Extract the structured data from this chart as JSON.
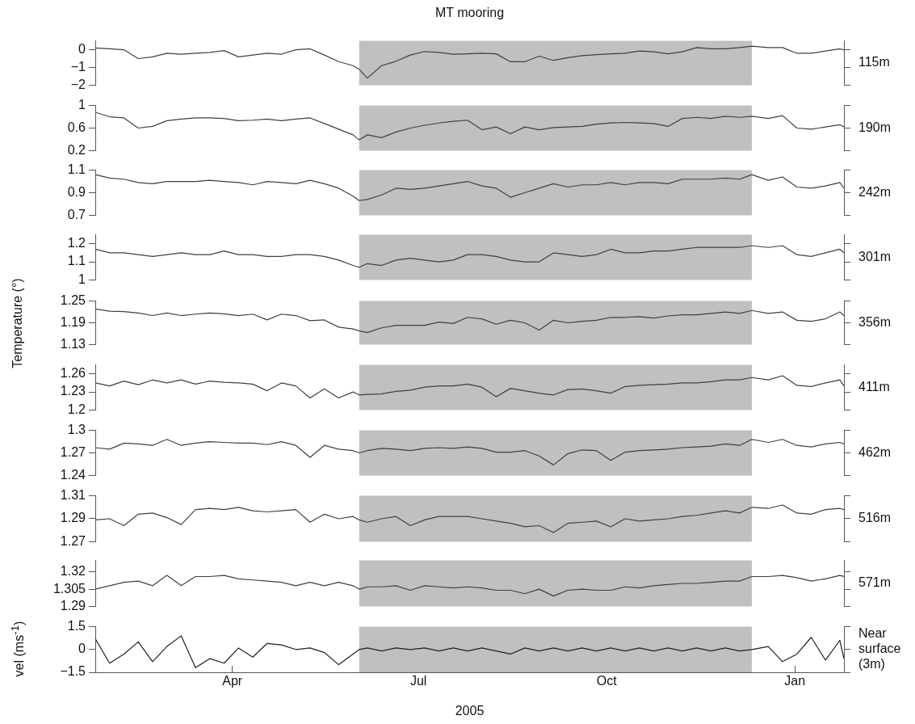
{
  "chart_data": [
    {
      "type": "line",
      "title": "MT mooring",
      "tick_labels": "y",
      "xlim": [
        "2005-01-24",
        "2006-01-25"
      ],
      "ylim": [
        -2,
        0.5
      ],
      "yticks": [
        -2,
        -1,
        0
      ],
      "bands": [
        {
          "axis": "x",
          "from": "2005-06-02",
          "to": "2005-12-11",
          "color": "#c0c0c0"
        }
      ],
      "x": [
        "2005-01-24",
        "2005-01-31",
        "2005-02-07",
        "2005-02-14",
        "2005-02-21",
        "2005-02-28",
        "2005-03-07",
        "2005-03-14",
        "2005-03-21",
        "2005-03-28",
        "2005-04-04",
        "2005-04-11",
        "2005-04-18",
        "2005-04-25",
        "2005-05-02",
        "2005-05-09",
        "2005-05-16",
        "2005-05-23",
        "2005-05-30",
        "2005-06-02",
        "2005-06-06",
        "2005-06-13",
        "2005-06-20",
        "2005-06-27",
        "2005-07-04",
        "2005-07-11",
        "2005-07-18",
        "2005-07-25",
        "2005-08-01",
        "2005-08-08",
        "2005-08-15",
        "2005-08-22",
        "2005-08-29",
        "2005-09-05",
        "2005-09-12",
        "2005-09-19",
        "2005-09-26",
        "2005-10-03",
        "2005-10-10",
        "2005-10-17",
        "2005-10-24",
        "2005-10-31",
        "2005-11-07",
        "2005-11-14",
        "2005-11-21",
        "2005-11-28",
        "2005-12-05",
        "2005-12-11",
        "2005-12-19",
        "2005-12-26",
        "2006-01-02",
        "2006-01-09",
        "2006-01-16",
        "2006-01-23",
        "2006-01-25"
      ],
      "series": [
        {
          "name": "115m",
          "color": "#404040",
          "values": [
            0.1,
            0.05,
            0.0,
            -0.5,
            -0.4,
            -0.2,
            -0.25,
            -0.2,
            -0.15,
            -0.05,
            -0.4,
            -0.3,
            -0.2,
            -0.25,
            0.0,
            0.05,
            -0.3,
            -0.67,
            -0.9,
            -1.1,
            -1.6,
            -0.9,
            -0.65,
            -0.3,
            -0.1,
            -0.15,
            -0.25,
            -0.23,
            -0.2,
            -0.23,
            -0.68,
            -0.68,
            -0.36,
            -0.6,
            -0.45,
            -0.33,
            -0.28,
            -0.23,
            -0.2,
            -0.07,
            -0.12,
            -0.23,
            -0.12,
            0.12,
            0.05,
            0.05,
            0.12,
            0.2,
            0.12,
            0.12,
            -0.2,
            -0.2,
            -0.07,
            0.05,
            0.0
          ]
        }
      ]
    },
    {
      "type": "line",
      "tick_labels": "y",
      "xlim": [
        "2005-01-24",
        "2006-01-25"
      ],
      "ylim": [
        0.2,
        1
      ],
      "yticks": [
        0.2,
        0.6,
        1
      ],
      "bands": [
        {
          "axis": "x",
          "from": "2005-06-02",
          "to": "2005-12-11",
          "color": "#c0c0c0"
        }
      ],
      "x": [
        "2005-01-24",
        "2005-01-31",
        "2005-02-07",
        "2005-02-14",
        "2005-02-21",
        "2005-02-28",
        "2005-03-07",
        "2005-03-14",
        "2005-03-21",
        "2005-03-28",
        "2005-04-04",
        "2005-04-11",
        "2005-04-18",
        "2005-04-25",
        "2005-05-02",
        "2005-05-09",
        "2005-05-16",
        "2005-05-23",
        "2005-05-30",
        "2005-06-02",
        "2005-06-06",
        "2005-06-13",
        "2005-06-20",
        "2005-06-27",
        "2005-07-04",
        "2005-07-11",
        "2005-07-18",
        "2005-07-25",
        "2005-08-01",
        "2005-08-08",
        "2005-08-15",
        "2005-08-22",
        "2005-08-29",
        "2005-09-05",
        "2005-09-12",
        "2005-09-19",
        "2005-09-26",
        "2005-10-03",
        "2005-10-10",
        "2005-10-17",
        "2005-10-24",
        "2005-10-31",
        "2005-11-07",
        "2005-11-14",
        "2005-11-21",
        "2005-11-28",
        "2005-12-05",
        "2005-12-11",
        "2005-12-19",
        "2005-12-26",
        "2006-01-02",
        "2006-01-09",
        "2006-01-16",
        "2006-01-23",
        "2006-01-25"
      ],
      "series": [
        {
          "name": "190m",
          "color": "#404040",
          "values": [
            0.88,
            0.8,
            0.78,
            0.6,
            0.63,
            0.73,
            0.76,
            0.78,
            0.78,
            0.77,
            0.73,
            0.74,
            0.76,
            0.73,
            0.76,
            0.78,
            0.68,
            0.58,
            0.48,
            0.39,
            0.48,
            0.43,
            0.53,
            0.6,
            0.65,
            0.69,
            0.72,
            0.74,
            0.57,
            0.62,
            0.5,
            0.62,
            0.57,
            0.61,
            0.62,
            0.63,
            0.67,
            0.69,
            0.7,
            0.69,
            0.68,
            0.63,
            0.77,
            0.79,
            0.77,
            0.81,
            0.79,
            0.81,
            0.77,
            0.82,
            0.6,
            0.58,
            0.62,
            0.66,
            0.62
          ]
        }
      ]
    },
    {
      "type": "line",
      "tick_labels": "y",
      "xlim": [
        "2005-01-24",
        "2006-01-25"
      ],
      "ylim": [
        0.7,
        1.1
      ],
      "yticks": [
        0.7,
        0.9,
        1.1
      ],
      "bands": [
        {
          "axis": "x",
          "from": "2005-06-02",
          "to": "2005-12-11",
          "color": "#c0c0c0"
        }
      ],
      "x": [
        "2005-01-24",
        "2005-01-31",
        "2005-02-07",
        "2005-02-14",
        "2005-02-21",
        "2005-02-28",
        "2005-03-07",
        "2005-03-14",
        "2005-03-21",
        "2005-03-28",
        "2005-04-04",
        "2005-04-11",
        "2005-04-18",
        "2005-04-25",
        "2005-05-02",
        "2005-05-09",
        "2005-05-16",
        "2005-05-23",
        "2005-05-30",
        "2005-06-02",
        "2005-06-06",
        "2005-06-13",
        "2005-06-20",
        "2005-06-27",
        "2005-07-04",
        "2005-07-11",
        "2005-07-18",
        "2005-07-25",
        "2005-08-01",
        "2005-08-08",
        "2005-08-15",
        "2005-08-22",
        "2005-08-29",
        "2005-09-05",
        "2005-09-12",
        "2005-09-19",
        "2005-09-26",
        "2005-10-03",
        "2005-10-10",
        "2005-10-17",
        "2005-10-24",
        "2005-10-31",
        "2005-11-07",
        "2005-11-14",
        "2005-11-21",
        "2005-11-28",
        "2005-12-05",
        "2005-12-11",
        "2005-12-19",
        "2005-12-26",
        "2006-01-02",
        "2006-01-09",
        "2006-01-16",
        "2006-01-23",
        "2006-01-25"
      ],
      "series": [
        {
          "name": "242m",
          "color": "#404040",
          "values": [
            1.06,
            1.03,
            1.02,
            0.99,
            0.98,
            1.0,
            1.0,
            1.0,
            1.01,
            1.0,
            0.99,
            0.97,
            1.0,
            0.99,
            0.98,
            1.01,
            0.98,
            0.94,
            0.87,
            0.83,
            0.84,
            0.88,
            0.94,
            0.93,
            0.94,
            0.96,
            0.98,
            1.0,
            0.96,
            0.94,
            0.86,
            0.9,
            0.94,
            0.98,
            0.95,
            0.97,
            0.97,
            0.99,
            0.97,
            0.99,
            0.99,
            0.98,
            1.02,
            1.02,
            1.02,
            1.03,
            1.02,
            1.06,
            1.01,
            1.04,
            0.95,
            0.94,
            0.96,
            0.99,
            0.94
          ]
        }
      ]
    },
    {
      "type": "line",
      "tick_labels": "y",
      "xlim": [
        "2005-01-24",
        "2006-01-25"
      ],
      "ylim": [
        1,
        1.25
      ],
      "yticks": [
        1,
        1.1,
        1.2
      ],
      "bands": [
        {
          "axis": "x",
          "from": "2005-06-02",
          "to": "2005-12-11",
          "color": "#c0c0c0"
        }
      ],
      "x": [
        "2005-01-24",
        "2005-01-31",
        "2005-02-07",
        "2005-02-14",
        "2005-02-21",
        "2005-02-28",
        "2005-03-07",
        "2005-03-14",
        "2005-03-21",
        "2005-03-28",
        "2005-04-04",
        "2005-04-11",
        "2005-04-18",
        "2005-04-25",
        "2005-05-02",
        "2005-05-09",
        "2005-05-16",
        "2005-05-23",
        "2005-05-30",
        "2005-06-02",
        "2005-06-06",
        "2005-06-13",
        "2005-06-20",
        "2005-06-27",
        "2005-07-04",
        "2005-07-11",
        "2005-07-18",
        "2005-07-25",
        "2005-08-01",
        "2005-08-08",
        "2005-08-15",
        "2005-08-22",
        "2005-08-29",
        "2005-09-05",
        "2005-09-12",
        "2005-09-19",
        "2005-09-26",
        "2005-10-03",
        "2005-10-10",
        "2005-10-17",
        "2005-10-24",
        "2005-10-31",
        "2005-11-07",
        "2005-11-14",
        "2005-11-21",
        "2005-11-28",
        "2005-12-05",
        "2005-12-11",
        "2005-12-19",
        "2005-12-26",
        "2006-01-02",
        "2006-01-09",
        "2006-01-16",
        "2006-01-23",
        "2006-01-25"
      ],
      "series": [
        {
          "name": "301m",
          "color": "#404040",
          "values": [
            1.17,
            1.15,
            1.15,
            1.14,
            1.13,
            1.14,
            1.15,
            1.14,
            1.14,
            1.16,
            1.14,
            1.14,
            1.13,
            1.13,
            1.14,
            1.14,
            1.13,
            1.11,
            1.08,
            1.07,
            1.09,
            1.08,
            1.11,
            1.12,
            1.11,
            1.1,
            1.11,
            1.14,
            1.14,
            1.13,
            1.11,
            1.1,
            1.1,
            1.15,
            1.14,
            1.13,
            1.14,
            1.17,
            1.15,
            1.15,
            1.16,
            1.16,
            1.17,
            1.18,
            1.18,
            1.18,
            1.18,
            1.19,
            1.18,
            1.19,
            1.14,
            1.13,
            1.15,
            1.17,
            1.15
          ]
        }
      ]
    },
    {
      "type": "line",
      "tick_labels": "y",
      "ylabel": "Temperature (°)",
      "xlim": [
        "2005-01-24",
        "2006-01-25"
      ],
      "ylim": [
        1.13,
        1.25
      ],
      "yticks": [
        1.13,
        1.19,
        1.25
      ],
      "bands": [
        {
          "axis": "x",
          "from": "2005-06-02",
          "to": "2005-12-11",
          "color": "#c0c0c0"
        }
      ],
      "x": [
        "2005-01-24",
        "2005-01-31",
        "2005-02-07",
        "2005-02-14",
        "2005-02-21",
        "2005-02-28",
        "2005-03-07",
        "2005-03-14",
        "2005-03-21",
        "2005-03-28",
        "2005-04-04",
        "2005-04-11",
        "2005-04-18",
        "2005-04-25",
        "2005-05-02",
        "2005-05-09",
        "2005-05-16",
        "2005-05-23",
        "2005-05-30",
        "2005-06-02",
        "2005-06-06",
        "2005-06-13",
        "2005-06-20",
        "2005-06-27",
        "2005-07-04",
        "2005-07-11",
        "2005-07-18",
        "2005-07-25",
        "2005-08-01",
        "2005-08-08",
        "2005-08-15",
        "2005-08-22",
        "2005-08-29",
        "2005-09-05",
        "2005-09-12",
        "2005-09-19",
        "2005-09-26",
        "2005-10-03",
        "2005-10-10",
        "2005-10-17",
        "2005-10-24",
        "2005-10-31",
        "2005-11-07",
        "2005-11-14",
        "2005-11-21",
        "2005-11-28",
        "2005-12-05",
        "2005-12-11",
        "2005-12-19",
        "2005-12-26",
        "2006-01-02",
        "2006-01-09",
        "2006-01-16",
        "2006-01-23",
        "2006-01-25"
      ],
      "series": [
        {
          "name": "356m",
          "color": "#404040",
          "values": [
            1.228,
            1.222,
            1.221,
            1.217,
            1.21,
            1.217,
            1.21,
            1.214,
            1.217,
            1.215,
            1.21,
            1.214,
            1.198,
            1.214,
            1.21,
            1.196,
            1.198,
            1.178,
            1.173,
            1.168,
            1.163,
            1.176,
            1.183,
            1.183,
            1.183,
            1.192,
            1.188,
            1.205,
            1.201,
            1.186,
            1.197,
            1.19,
            1.17,
            1.197,
            1.19,
            1.194,
            1.197,
            1.205,
            1.205,
            1.207,
            1.203,
            1.209,
            1.212,
            1.212,
            1.216,
            1.22,
            1.216,
            1.224,
            1.216,
            1.22,
            1.197,
            1.194,
            1.201,
            1.22,
            1.21
          ]
        }
      ]
    },
    {
      "type": "line",
      "tick_labels": "y",
      "xlim": [
        "2005-01-24",
        "2006-01-25"
      ],
      "ylim": [
        1.2,
        1.275
      ],
      "yticks": [
        1.2,
        1.23,
        1.26
      ],
      "bands": [
        {
          "axis": "x",
          "from": "2005-06-02",
          "to": "2005-12-11",
          "color": "#c0c0c0"
        }
      ],
      "x": [
        "2005-01-24",
        "2005-01-31",
        "2005-02-07",
        "2005-02-14",
        "2005-02-21",
        "2005-02-28",
        "2005-03-07",
        "2005-03-14",
        "2005-03-21",
        "2005-03-28",
        "2005-04-04",
        "2005-04-11",
        "2005-04-18",
        "2005-04-25",
        "2005-05-02",
        "2005-05-09",
        "2005-05-16",
        "2005-05-23",
        "2005-05-30",
        "2005-06-02",
        "2005-06-06",
        "2005-06-13",
        "2005-06-20",
        "2005-06-27",
        "2005-07-04",
        "2005-07-11",
        "2005-07-18",
        "2005-07-25",
        "2005-08-01",
        "2005-08-08",
        "2005-08-15",
        "2005-08-22",
        "2005-08-29",
        "2005-09-05",
        "2005-09-12",
        "2005-09-19",
        "2005-09-26",
        "2005-10-03",
        "2005-10-10",
        "2005-10-17",
        "2005-10-24",
        "2005-10-31",
        "2005-11-07",
        "2005-11-14",
        "2005-11-21",
        "2005-11-28",
        "2005-12-05",
        "2005-12-11",
        "2005-12-19",
        "2005-12-26",
        "2006-01-02",
        "2006-01-09",
        "2006-01-16",
        "2006-01-23",
        "2006-01-25"
      ],
      "series": [
        {
          "name": "411m",
          "color": "#404040",
          "values": [
            1.245,
            1.24,
            1.248,
            1.242,
            1.25,
            1.245,
            1.25,
            1.243,
            1.248,
            1.246,
            1.245,
            1.243,
            1.232,
            1.245,
            1.24,
            1.22,
            1.235,
            1.22,
            1.23,
            1.225,
            1.226,
            1.227,
            1.231,
            1.233,
            1.238,
            1.24,
            1.24,
            1.243,
            1.238,
            1.222,
            1.236,
            1.232,
            1.228,
            1.225,
            1.234,
            1.235,
            1.232,
            1.228,
            1.239,
            1.241,
            1.242,
            1.243,
            1.245,
            1.245,
            1.247,
            1.25,
            1.25,
            1.254,
            1.25,
            1.257,
            1.241,
            1.239,
            1.245,
            1.25,
            1.24
          ]
        }
      ]
    },
    {
      "type": "line",
      "tick_labels": "y",
      "xlim": [
        "2005-01-24",
        "2006-01-25"
      ],
      "ylim": [
        1.24,
        1.3
      ],
      "yticks": [
        1.24,
        1.27,
        1.3
      ],
      "bands": [
        {
          "axis": "x",
          "from": "2005-06-02",
          "to": "2005-12-11",
          "color": "#c0c0c0"
        }
      ],
      "x": [
        "2005-01-24",
        "2005-01-31",
        "2005-02-07",
        "2005-02-14",
        "2005-02-21",
        "2005-02-28",
        "2005-03-07",
        "2005-03-14",
        "2005-03-21",
        "2005-03-28",
        "2005-04-04",
        "2005-04-11",
        "2005-04-18",
        "2005-04-25",
        "2005-05-02",
        "2005-05-09",
        "2005-05-16",
        "2005-05-23",
        "2005-05-30",
        "2005-06-02",
        "2005-06-06",
        "2005-06-13",
        "2005-06-20",
        "2005-06-27",
        "2005-07-04",
        "2005-07-11",
        "2005-07-18",
        "2005-07-25",
        "2005-08-01",
        "2005-08-08",
        "2005-08-15",
        "2005-08-22",
        "2005-08-29",
        "2005-09-05",
        "2005-09-12",
        "2005-09-19",
        "2005-09-26",
        "2005-10-03",
        "2005-10-10",
        "2005-10-17",
        "2005-10-24",
        "2005-10-31",
        "2005-11-07",
        "2005-11-14",
        "2005-11-21",
        "2005-11-28",
        "2005-12-05",
        "2005-12-11",
        "2005-12-19",
        "2005-12-26",
        "2006-01-02",
        "2006-01-09",
        "2006-01-16",
        "2006-01-23",
        "2006-01-25"
      ],
      "series": [
        {
          "name": "462m",
          "color": "#404040",
          "values": [
            1.277,
            1.275,
            1.283,
            1.282,
            1.28,
            1.288,
            1.28,
            1.283,
            1.285,
            1.284,
            1.283,
            1.283,
            1.281,
            1.285,
            1.28,
            1.264,
            1.28,
            1.275,
            1.273,
            1.27,
            1.273,
            1.276,
            1.275,
            1.273,
            1.276,
            1.277,
            1.276,
            1.278,
            1.276,
            1.271,
            1.271,
            1.273,
            1.266,
            1.254,
            1.269,
            1.274,
            1.273,
            1.26,
            1.271,
            1.273,
            1.274,
            1.275,
            1.277,
            1.278,
            1.279,
            1.282,
            1.28,
            1.288,
            1.284,
            1.288,
            1.28,
            1.278,
            1.282,
            1.284,
            1.282
          ]
        }
      ]
    },
    {
      "type": "line",
      "tick_labels": "y",
      "xlim": [
        "2005-01-24",
        "2006-01-25"
      ],
      "ylim": [
        1.27,
        1.31
      ],
      "yticks": [
        1.27,
        1.29,
        1.31
      ],
      "bands": [
        {
          "axis": "x",
          "from": "2005-06-02",
          "to": "2005-12-11",
          "color": "#c0c0c0"
        }
      ],
      "x": [
        "2005-01-24",
        "2005-01-31",
        "2005-02-07",
        "2005-02-14",
        "2005-02-21",
        "2005-02-28",
        "2005-03-07",
        "2005-03-14",
        "2005-03-21",
        "2005-03-28",
        "2005-04-04",
        "2005-04-11",
        "2005-04-18",
        "2005-04-25",
        "2005-05-02",
        "2005-05-09",
        "2005-05-16",
        "2005-05-23",
        "2005-05-30",
        "2005-06-02",
        "2005-06-06",
        "2005-06-13",
        "2005-06-20",
        "2005-06-27",
        "2005-07-04",
        "2005-07-11",
        "2005-07-18",
        "2005-07-25",
        "2005-08-01",
        "2005-08-08",
        "2005-08-15",
        "2005-08-22",
        "2005-08-29",
        "2005-09-05",
        "2005-09-12",
        "2005-09-19",
        "2005-09-26",
        "2005-10-03",
        "2005-10-10",
        "2005-10-17",
        "2005-10-24",
        "2005-10-31",
        "2005-11-07",
        "2005-11-14",
        "2005-11-21",
        "2005-11-28",
        "2005-12-05",
        "2005-12-11",
        "2005-12-19",
        "2005-12-26",
        "2006-01-02",
        "2006-01-09",
        "2006-01-16",
        "2006-01-23",
        "2006-01-25"
      ],
      "series": [
        {
          "name": "516m",
          "color": "#404040",
          "values": [
            1.289,
            1.29,
            1.284,
            1.294,
            1.295,
            1.291,
            1.285,
            1.298,
            1.299,
            1.298,
            1.3,
            1.297,
            1.296,
            1.297,
            1.298,
            1.287,
            1.294,
            1.29,
            1.292,
            1.289,
            1.287,
            1.29,
            1.292,
            1.284,
            1.289,
            1.292,
            1.292,
            1.292,
            1.29,
            1.288,
            1.286,
            1.283,
            1.284,
            1.278,
            1.286,
            1.287,
            1.288,
            1.283,
            1.29,
            1.288,
            1.289,
            1.29,
            1.292,
            1.293,
            1.295,
            1.297,
            1.295,
            1.3,
            1.299,
            1.302,
            1.295,
            1.294,
            1.298,
            1.299,
            1.298
          ]
        }
      ]
    },
    {
      "type": "line",
      "tick_labels": "y",
      "xlim": [
        "2005-01-24",
        "2006-01-25"
      ],
      "ylim": [
        1.29,
        1.33
      ],
      "yticks": [
        1.29,
        1.305,
        1.32
      ],
      "bands": [
        {
          "axis": "x",
          "from": "2005-06-02",
          "to": "2005-12-11",
          "color": "#c0c0c0"
        }
      ],
      "x": [
        "2005-01-24",
        "2005-01-31",
        "2005-02-07",
        "2005-02-14",
        "2005-02-21",
        "2005-02-28",
        "2005-03-07",
        "2005-03-14",
        "2005-03-21",
        "2005-03-28",
        "2005-04-04",
        "2005-04-11",
        "2005-04-18",
        "2005-04-25",
        "2005-05-02",
        "2005-05-09",
        "2005-05-16",
        "2005-05-23",
        "2005-05-30",
        "2005-06-02",
        "2005-06-06",
        "2005-06-13",
        "2005-06-20",
        "2005-06-27",
        "2005-07-04",
        "2005-07-11",
        "2005-07-18",
        "2005-07-25",
        "2005-08-01",
        "2005-08-08",
        "2005-08-15",
        "2005-08-22",
        "2005-08-29",
        "2005-09-05",
        "2005-09-12",
        "2005-09-19",
        "2005-09-26",
        "2005-10-03",
        "2005-10-10",
        "2005-10-17",
        "2005-10-24",
        "2005-10-31",
        "2005-11-07",
        "2005-11-14",
        "2005-11-21",
        "2005-11-28",
        "2005-12-05",
        "2005-12-11",
        "2005-12-19",
        "2005-12-26",
        "2006-01-02",
        "2006-01-09",
        "2006-01-16",
        "2006-01-23",
        "2006-01-25"
      ],
      "series": [
        {
          "name": "571m",
          "color": "#404040",
          "values": [
            1.305,
            1.308,
            1.311,
            1.312,
            1.308,
            1.317,
            1.308,
            1.316,
            1.316,
            1.317,
            1.314,
            1.313,
            1.312,
            1.311,
            1.308,
            1.311,
            1.308,
            1.311,
            1.308,
            1.305,
            1.307,
            1.307,
            1.308,
            1.304,
            1.308,
            1.307,
            1.306,
            1.307,
            1.306,
            1.304,
            1.304,
            1.301,
            1.305,
            1.299,
            1.304,
            1.305,
            1.304,
            1.304,
            1.307,
            1.306,
            1.308,
            1.309,
            1.31,
            1.31,
            1.311,
            1.312,
            1.312,
            1.316,
            1.316,
            1.317,
            1.315,
            1.312,
            1.314,
            1.317,
            1.316
          ]
        }
      ]
    },
    {
      "type": "line",
      "ylabel": "vel (ms$^{-1}$)",
      "xlabel": "2005",
      "xlim": [
        "2005-01-24",
        "2006-01-25"
      ],
      "xticks": [
        {
          "value": "2005-04-01",
          "label": "Apr"
        },
        {
          "value": "2005-07-01",
          "label": "Jul"
        },
        {
          "value": "2005-10-01",
          "label": "Oct"
        },
        {
          "value": "2006-01-01",
          "label": "Jan"
        }
      ],
      "ylim": [
        -1.5,
        1.5
      ],
      "yticks": [
        -1.5,
        0,
        1.5
      ],
      "bands": [
        {
          "axis": "x",
          "from": "2005-06-02",
          "to": "2005-12-11",
          "color": "#c0c0c0"
        }
      ],
      "x": [
        "2005-01-24",
        "2005-01-31",
        "2005-02-07",
        "2005-02-14",
        "2005-02-21",
        "2005-02-28",
        "2005-03-07",
        "2005-03-14",
        "2005-03-21",
        "2005-03-28",
        "2005-04-04",
        "2005-04-11",
        "2005-04-18",
        "2005-04-25",
        "2005-05-02",
        "2005-05-09",
        "2005-05-16",
        "2005-05-23",
        "2005-05-30",
        "2005-06-02",
        "2005-06-06",
        "2005-06-13",
        "2005-06-20",
        "2005-06-27",
        "2005-07-04",
        "2005-07-11",
        "2005-07-18",
        "2005-07-25",
        "2005-08-01",
        "2005-08-08",
        "2005-08-15",
        "2005-08-22",
        "2005-08-29",
        "2005-09-05",
        "2005-09-12",
        "2005-09-19",
        "2005-09-26",
        "2005-10-03",
        "2005-10-10",
        "2005-10-17",
        "2005-10-24",
        "2005-10-31",
        "2005-11-07",
        "2005-11-14",
        "2005-11-21",
        "2005-11-28",
        "2005-12-05",
        "2005-12-11",
        "2005-12-19",
        "2005-12-26",
        "2006-01-02",
        "2006-01-09",
        "2006-01-16",
        "2006-01-23",
        "2006-01-25"
      ],
      "series": [
        {
          "name": "Near surface (3m)",
          "color": "#202020",
          "values": [
            0.7,
            -0.9,
            -0.3,
            0.5,
            -0.8,
            0.2,
            0.9,
            -1.2,
            -0.6,
            -0.9,
            0.1,
            -0.5,
            0.4,
            0.3,
            0.0,
            0.1,
            -0.2,
            -1.0,
            -0.3,
            0.0,
            0.1,
            -0.1,
            0.1,
            0.0,
            0.1,
            -0.1,
            0.1,
            -0.1,
            0.1,
            -0.1,
            -0.3,
            0.1,
            -0.1,
            0.1,
            -0.1,
            0.1,
            -0.1,
            0.1,
            -0.1,
            0.1,
            -0.1,
            0.1,
            -0.1,
            0.1,
            -0.1,
            0.1,
            -0.1,
            0.0,
            0.2,
            -0.8,
            -0.3,
            0.8,
            -0.7,
            0.6,
            -0.6
          ]
        }
      ]
    }
  ]
}
